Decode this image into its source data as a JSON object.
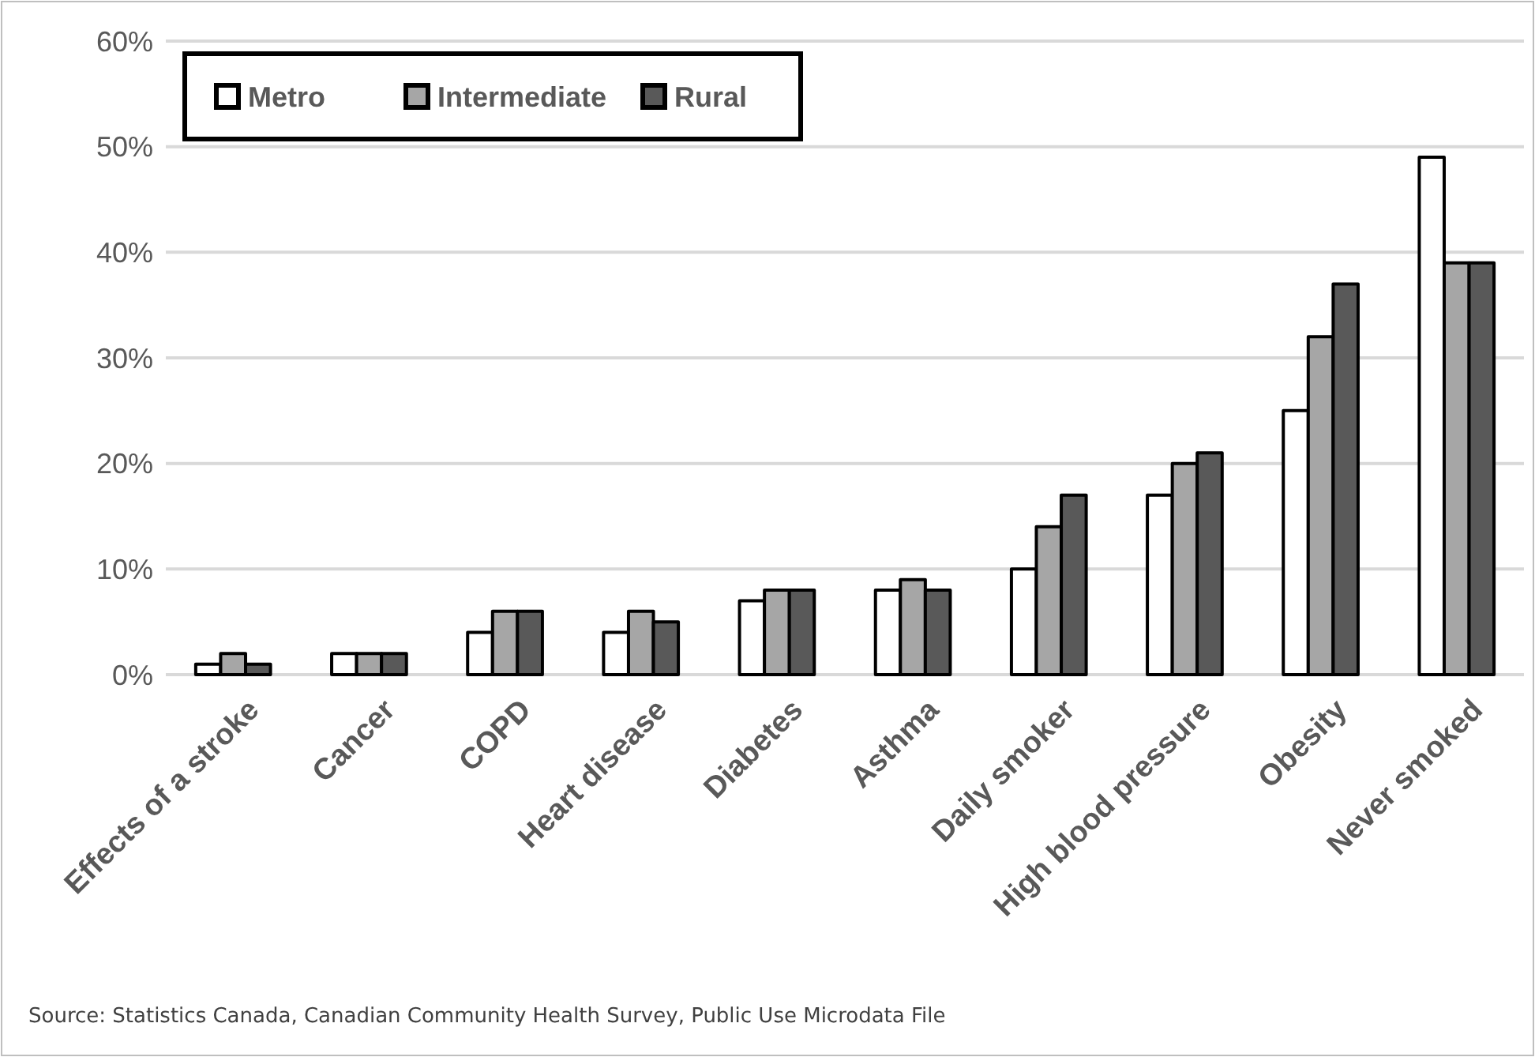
{
  "chart_data": {
    "type": "bar",
    "categories": [
      "Effects of a stroke",
      "Cancer",
      "COPD",
      "Heart disease",
      "Diabetes",
      "Asthma",
      "Daily smoker",
      "High blood pressure",
      "Obesity",
      "Never smoked"
    ],
    "series": [
      {
        "name": "Metro",
        "color": "#ffffff",
        "values": [
          1,
          2,
          4,
          4,
          7,
          8,
          10,
          17,
          25,
          49
        ]
      },
      {
        "name": "Intermediate",
        "color": "#a6a6a6",
        "values": [
          2,
          2,
          6,
          6,
          8,
          9,
          14,
          20,
          32,
          39
        ]
      },
      {
        "name": "Rural",
        "color": "#595959",
        "values": [
          1,
          2,
          6,
          5,
          8,
          8,
          17,
          21,
          37,
          39
        ]
      }
    ],
    "ylim": [
      0,
      60
    ],
    "yticks": [
      {
        "value": 0,
        "label": "0%"
      },
      {
        "value": 10,
        "label": "10%"
      },
      {
        "value": 20,
        "label": "20%"
      },
      {
        "value": 30,
        "label": "30%"
      },
      {
        "value": 40,
        "label": "40%"
      },
      {
        "value": 50,
        "label": "50%"
      },
      {
        "value": 60,
        "label": "60%"
      }
    ],
    "grid": "y",
    "legend": "top left",
    "annotations": [
      "Source: Statistics Canada, Canadian Community Health Survey, Public Use Microdata File"
    ]
  }
}
